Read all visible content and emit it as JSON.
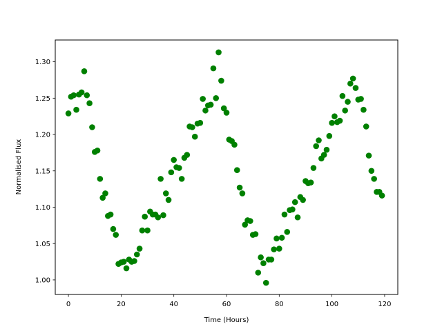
{
  "chart_data": {
    "type": "scatter",
    "title": "",
    "xlabel": "Time (Hours)",
    "ylabel": "Normalised Flux",
    "xlim": [
      -5,
      125
    ],
    "ylim": [
      0.98,
      1.33
    ],
    "xticks": [
      0,
      20,
      40,
      60,
      80,
      100,
      120
    ],
    "yticks": [
      1.0,
      1.05,
      1.1,
      1.15,
      1.2,
      1.25,
      1.3
    ],
    "xtick_labels": [
      "0",
      "20",
      "40",
      "60",
      "80",
      "100",
      "120"
    ],
    "ytick_labels": [
      "1.00",
      "1.05",
      "1.10",
      "1.15",
      "1.20",
      "1.25",
      "1.30"
    ],
    "grid": false,
    "marker_color": "#008000",
    "series": [
      {
        "x": [
          0,
          1,
          2,
          3,
          4,
          5,
          6,
          7,
          8,
          9,
          10,
          11,
          12,
          13,
          14,
          15,
          16,
          17,
          18,
          19,
          20,
          21,
          22,
          23,
          24,
          25,
          26,
          27,
          28,
          29,
          30,
          31,
          32,
          33,
          34,
          35,
          36,
          37,
          38,
          39,
          40,
          41,
          42,
          43,
          44,
          45,
          46,
          47,
          48,
          49,
          50,
          51,
          52,
          53,
          54,
          55,
          56,
          57,
          58,
          59,
          60,
          61,
          62,
          63,
          64,
          65,
          66,
          67,
          68,
          69,
          70,
          71,
          72,
          73,
          74,
          75,
          76,
          77,
          78,
          79,
          80,
          81,
          82,
          83,
          84,
          85,
          86,
          87,
          88,
          89,
          90,
          91,
          92,
          93,
          94,
          95,
          96,
          97,
          98,
          99,
          100,
          101,
          102,
          103,
          104,
          105,
          106,
          107,
          108,
          109,
          110,
          111,
          112,
          113,
          114,
          115,
          116,
          117,
          118,
          119
        ],
        "y": [
          1.229,
          1.252,
          1.254,
          1.234,
          1.255,
          1.258,
          1.287,
          1.254,
          1.243,
          1.21,
          1.176,
          1.178,
          1.139,
          1.113,
          1.119,
          1.088,
          1.09,
          1.07,
          1.062,
          1.022,
          1.024,
          1.025,
          1.016,
          1.028,
          1.025,
          1.026,
          1.035,
          1.043,
          1.068,
          1.087,
          1.068,
          1.094,
          1.09,
          1.09,
          1.086,
          1.139,
          1.089,
          1.119,
          1.11,
          1.148,
          1.165,
          1.155,
          1.154,
          1.139,
          1.168,
          1.172,
          1.211,
          1.21,
          1.197,
          1.215,
          1.216,
          1.249,
          1.233,
          1.24,
          1.241,
          1.291,
          1.25,
          1.313,
          1.274,
          1.236,
          1.23,
          1.193,
          1.191,
          1.186,
          1.151,
          1.127,
          1.119,
          1.076,
          1.082,
          1.081,
          1.062,
          1.063,
          1.01,
          1.031,
          1.023,
          0.996,
          1.028,
          1.028,
          1.042,
          1.057,
          1.043,
          1.058,
          1.09,
          1.066,
          1.096,
          1.097,
          1.107,
          1.086,
          1.114,
          1.11,
          1.136,
          1.133,
          1.134,
          1.154,
          1.184,
          1.192,
          1.167,
          1.172,
          1.179,
          1.198,
          1.216,
          1.225,
          1.217,
          1.219,
          1.253,
          1.233,
          1.245,
          1.27,
          1.277,
          1.264,
          1.248,
          1.249,
          1.234,
          1.211,
          1.171,
          1.15,
          1.139,
          1.121,
          1.121,
          1.116
        ]
      }
    ]
  }
}
